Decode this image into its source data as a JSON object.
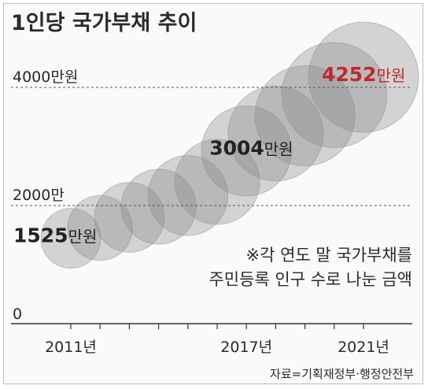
{
  "chart_data": {
    "type": "bubble",
    "title": "1인당 국가부채 추이",
    "unit": "만원",
    "x": [
      2011,
      2012,
      2013,
      2014,
      2015,
      2016,
      2017,
      2018,
      2019,
      2020,
      2021
    ],
    "x_tick_labels": [
      "2011년",
      "2017년",
      "2021년"
    ],
    "x_tick_values": [
      2011,
      2017,
      2021
    ],
    "values_labeled": [
      {
        "year": 2011,
        "value": "1525",
        "unit": "만원"
      },
      {
        "year": 2017,
        "value": "3004",
        "unit": "만원"
      },
      {
        "year": 2021,
        "value": "4252",
        "unit": "만원"
      }
    ],
    "values": [
      1525,
      1700,
      1880,
      2060,
      2250,
      2480,
      3004,
      3300,
      3600,
      3950,
      4252
    ],
    "y_gridlines": [
      {
        "value": 4000,
        "label": "4000만원"
      },
      {
        "value": 2000,
        "label": "2000만"
      },
      {
        "value": 0,
        "label": "0"
      }
    ],
    "ylim": [
      0,
      4700
    ],
    "highlight_color": "#c0282d",
    "note_line1": "※각 연도 말 국가부채를",
    "note_line2": "주민등록 인구 수로 나눈 금액",
    "source": "자료=기획재정부·행정안전부"
  }
}
